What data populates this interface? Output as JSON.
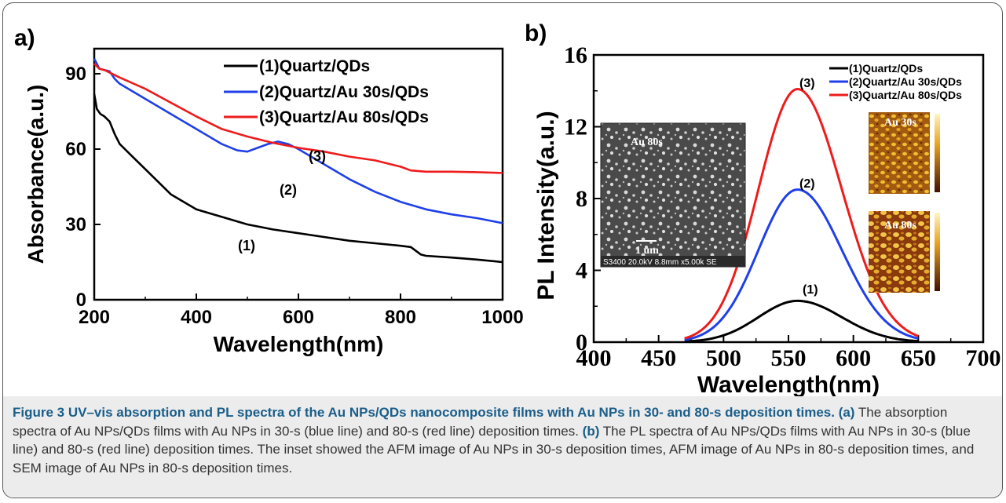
{
  "caption": {
    "bold": "Figure 3 UV–vis absorption and PL spectra of the Au NPs/QDs nanocomposite films with Au NPs in 30- and 80-s deposition times.",
    "tag_a": "(a)",
    "text_a": "The absorption spectra of Au NPs/QDs films with Au NPs in 30-s (blue line) and 80-s (red line) deposition times.",
    "tag_b": "(b)",
    "text_b": "The PL spectra of Au NPs/QDs films with Au NPs in 30-s (blue line) and 80-s (red line) deposition times. The inset showed the AFM image of Au NPs in 30-s deposition times, AFM image of Au NPs in 80-s deposition times, and SEM image of Au NPs in 80-s deposition times."
  },
  "chart_data": [
    {
      "panel": "a)",
      "type": "line",
      "xlabel": "Wavelength(nm)",
      "ylabel": "Absorbance(a.u.)",
      "xlim": [
        200,
        1000
      ],
      "ylim": [
        0,
        100
      ],
      "xticks": [
        "200",
        "400",
        "600",
        "800",
        "1000"
      ],
      "yticks": [
        "0",
        "30",
        "60",
        "90"
      ],
      "legend_position": "top-right",
      "series": [
        {
          "name": "(1)Quartz/QDs",
          "color": "#000000",
          "x": [
            200,
            205,
            212,
            220,
            230,
            240,
            250,
            270,
            300,
            350,
            400,
            450,
            500,
            550,
            600,
            650,
            700,
            750,
            800,
            820,
            830,
            840,
            850,
            900,
            950,
            1000
          ],
          "y": [
            82,
            76,
            74,
            73,
            71,
            66,
            62,
            58,
            52,
            42,
            36,
            33,
            30,
            28,
            26.5,
            25,
            23.5,
            22.5,
            21.5,
            21,
            19.5,
            18,
            17.5,
            16.8,
            16,
            15
          ]
        },
        {
          "name": "(2)Quartz/Au 30s/QDs",
          "color": "#1f3fe8",
          "x": [
            200,
            205,
            210,
            220,
            230,
            240,
            250,
            300,
            350,
            400,
            450,
            480,
            500,
            520,
            540,
            560,
            580,
            600,
            650,
            700,
            750,
            800,
            850,
            900,
            950,
            1000
          ],
          "y": [
            96,
            94,
            92,
            91.5,
            91,
            88,
            86,
            80,
            74,
            68,
            62,
            59.5,
            59,
            60.5,
            62,
            63,
            62,
            60,
            54,
            48,
            43,
            39,
            36,
            34,
            32.5,
            30.5
          ]
        },
        {
          "name": "(3)Quartz/Au 80s/QDs",
          "color": "#ee1c1c",
          "x": [
            200,
            205,
            210,
            220,
            230,
            250,
            300,
            350,
            400,
            450,
            500,
            550,
            600,
            650,
            700,
            750,
            800,
            820,
            850,
            900,
            950,
            1000
          ],
          "y": [
            94,
            93,
            92,
            91.5,
            90.5,
            88.5,
            84,
            78.5,
            73,
            68,
            65,
            62.5,
            60.5,
            59,
            57,
            55.5,
            53,
            51.5,
            51,
            51,
            50.8,
            50.5
          ]
        }
      ],
      "annotations": [
        "(1)",
        "(2)",
        "(3)"
      ]
    },
    {
      "panel": "b)",
      "type": "line",
      "xlabel": "Wavelength(nm)",
      "ylabel": "PL Intensity(a.u.)",
      "xlim": [
        400,
        700
      ],
      "ylim": [
        0,
        16
      ],
      "xticks": [
        "400",
        "450",
        "500",
        "550",
        "600",
        "650",
        "700"
      ],
      "yticks": [
        "0",
        "4",
        "8",
        "12",
        "16"
      ],
      "legend_position": "top-right",
      "series": [
        {
          "name": "(1)Quartz/QDs",
          "color": "#000000",
          "peak_x": 557,
          "peak_y": 2.3,
          "x_start": 470,
          "x_end": 650
        },
        {
          "name": "(2)Quartz/Au 30s/QDs",
          "color": "#1f3fe8",
          "peak_x": 557,
          "peak_y": 8.5,
          "x_start": 470,
          "x_end": 650
        },
        {
          "name": "(3)Quartz/Au 80s/QDs",
          "color": "#ee1c1c",
          "peak_x": 557,
          "peak_y": 14.1,
          "x_start": 470,
          "x_end": 650
        }
      ],
      "annotations": [
        "(1)",
        "(2)",
        "(3)"
      ],
      "insets": {
        "sem_label": "Au 80s",
        "sem_scale": "1 um",
        "sem_info": "S3400 20.0kV 8.8mm x5.00k SE",
        "afm_top_label": "Au 30s",
        "afm_bottom_label": "Au 80s"
      }
    }
  ]
}
